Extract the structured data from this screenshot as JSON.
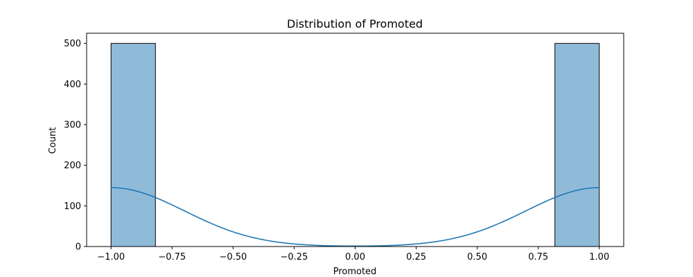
{
  "chart_data": {
    "type": "histogram",
    "title": "Distribution of Promoted",
    "xlabel": "Promoted",
    "ylabel": "Count",
    "xlim": [
      -1.1,
      1.1
    ],
    "ylim": [
      0,
      525
    ],
    "xticks": [
      -1.0,
      -0.75,
      -0.5,
      -0.25,
      0.0,
      0.25,
      0.5,
      0.75,
      1.0
    ],
    "xtick_labels": [
      "−1.00",
      "−0.75",
      "−0.50",
      "−0.25",
      "0.00",
      "0.25",
      "0.50",
      "0.75",
      "1.00"
    ],
    "yticks": [
      0,
      100,
      200,
      300,
      400,
      500
    ],
    "ytick_labels": [
      "0",
      "100",
      "200",
      "300",
      "400",
      "500"
    ],
    "bins": [
      {
        "x0": -1.0,
        "x1": -0.8182,
        "count": 500
      },
      {
        "x0": 0.8182,
        "x1": 1.0,
        "count": 500
      }
    ],
    "kde": {
      "bandwidth": 0.3,
      "peak_count": 145,
      "centers": [
        -1.0,
        1.0
      ]
    },
    "grid": false,
    "colors": {
      "bar_fill": "#8fbbd9",
      "bar_edge": "#000000",
      "kde_line": "#1f77b4"
    }
  }
}
